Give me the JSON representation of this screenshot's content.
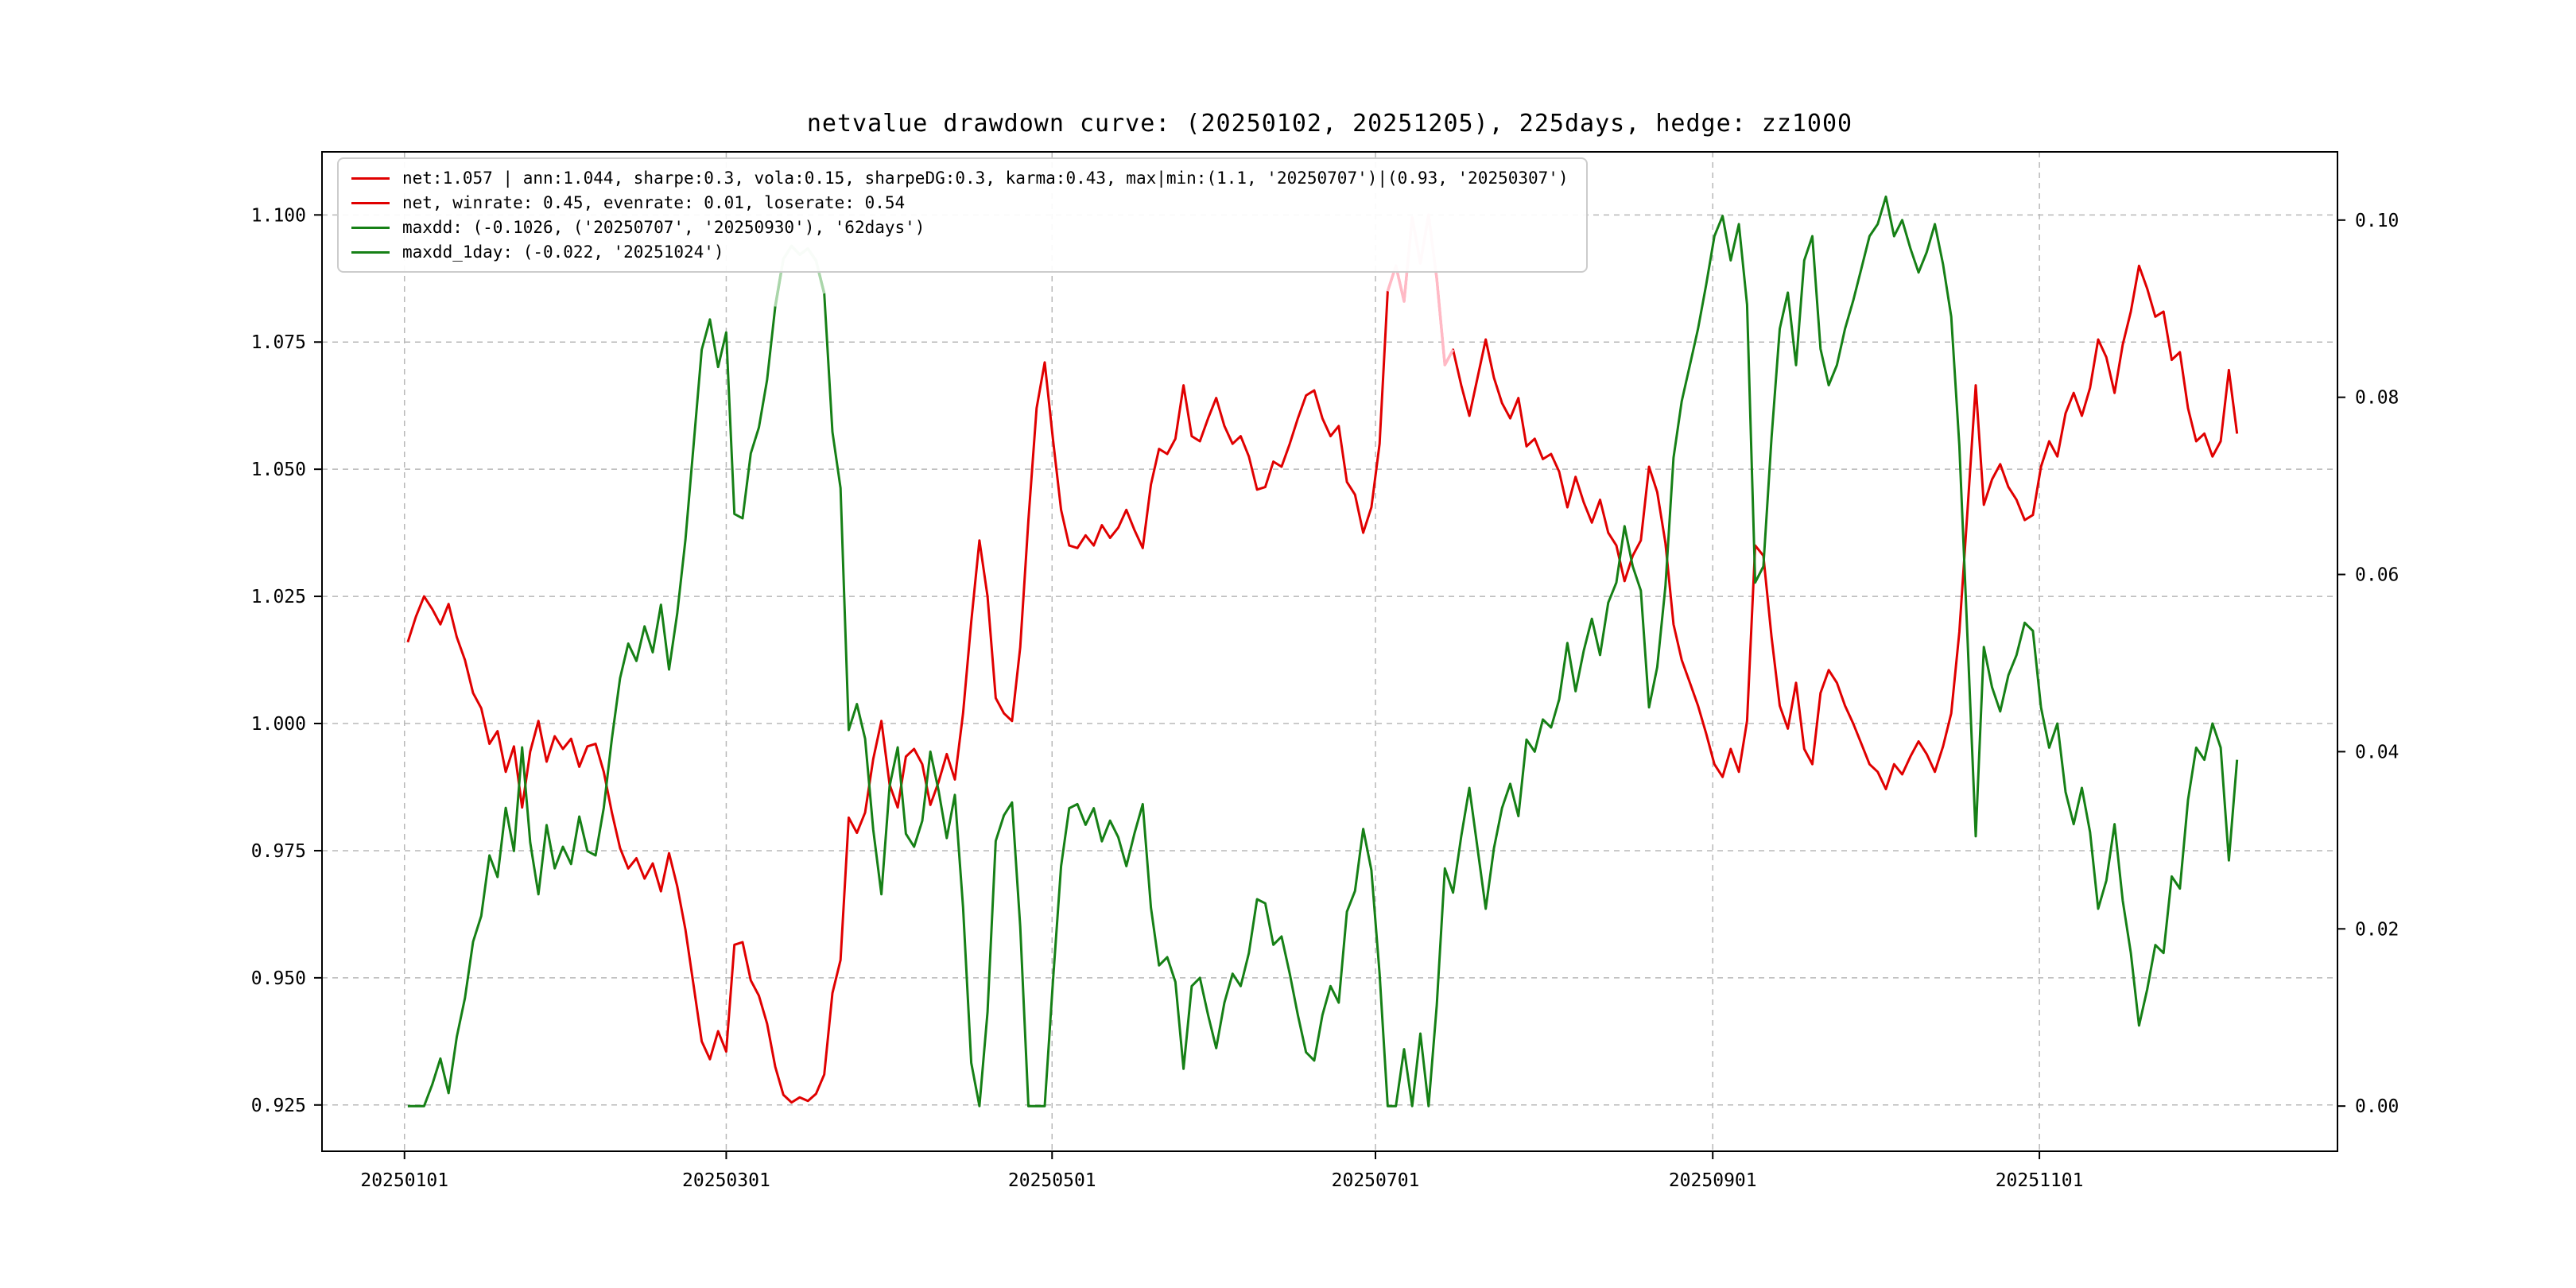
{
  "title": "netvalue drawdown curve: (20250102, 20251205), 225days, hedge: zz1000",
  "colors": {
    "net": "#e00000",
    "drawdown": "#168016",
    "net_peak_highlight": "#ffb9c5",
    "drawdown_peak_highlight": "#aad6aa",
    "grid": "#b8b8b8",
    "frame": "#000000"
  },
  "legend": {
    "items": [
      {
        "color_key": "net",
        "label": "net:1.057 | ann:1.044, sharpe:0.3, vola:0.15, sharpeDG:0.3, karma:0.43, max|min:(1.1, '20250707')|(0.93, '20250307')"
      },
      {
        "color_key": "net",
        "label": "net, winrate: 0.45, evenrate: 0.01, loserate: 0.54"
      },
      {
        "color_key": "drawdown",
        "label": "maxdd: (-0.1026, ('20250707', '20250930'), '62days')"
      },
      {
        "color_key": "drawdown",
        "label": "maxdd_1day: (-0.022, '20251024')"
      }
    ]
  },
  "chart_data": {
    "type": "line",
    "start_date": "20250102",
    "end_date": "20251205",
    "n_points": 225,
    "grid": true,
    "legend_position": "upper left",
    "x_axis": {
      "xlim": [
        -10.5,
        236.3
      ],
      "ticks": [
        {
          "label": "20250101",
          "pos": -0.4
        },
        {
          "label": "20250301",
          "pos": 39.0
        },
        {
          "label": "20250501",
          "pos": 78.9
        },
        {
          "label": "20250701",
          "pos": 118.5
        },
        {
          "label": "20250901",
          "pos": 159.8
        },
        {
          "label": "20251101",
          "pos": 199.8
        }
      ]
    },
    "y_axis_left": {
      "ylim": [
        0.9159,
        1.1124
      ],
      "ticks": [
        {
          "label": "0.925",
          "value": 0.925
        },
        {
          "label": "0.950",
          "value": 0.95
        },
        {
          "label": "0.975",
          "value": 0.975
        },
        {
          "label": "1.000",
          "value": 1.0
        },
        {
          "label": "1.025",
          "value": 1.025
        },
        {
          "label": "1.050",
          "value": 1.05
        },
        {
          "label": "1.075",
          "value": 1.075
        },
        {
          "label": "1.100",
          "value": 1.1
        }
      ]
    },
    "y_axis_right": {
      "ylim": [
        -0.0051,
        0.1077
      ],
      "ticks": [
        {
          "label": "0.00",
          "value": 0.0
        },
        {
          "label": "0.02",
          "value": 0.02
        },
        {
          "label": "0.04",
          "value": 0.04
        },
        {
          "label": "0.06",
          "value": 0.06
        },
        {
          "label": "0.08",
          "value": 0.08
        },
        {
          "label": "0.10",
          "value": 0.1
        }
      ]
    },
    "series": [
      {
        "name": "net",
        "axis": "left",
        "color_key": "net",
        "values": [
          1.016,
          1.021,
          1.025,
          1.0225,
          1.0195,
          1.0235,
          1.017,
          1.0125,
          1.006,
          1.003,
          0.996,
          0.9985,
          0.9905,
          0.9955,
          0.9835,
          0.9945,
          1.0005,
          0.9925,
          0.9975,
          0.995,
          0.997,
          0.9915,
          0.9955,
          0.996,
          0.9905,
          0.9825,
          0.9755,
          0.9715,
          0.9735,
          0.9695,
          0.9725,
          0.967,
          0.9745,
          0.968,
          0.9595,
          0.9485,
          0.9375,
          0.934,
          0.9395,
          0.9355,
          0.9565,
          0.957,
          0.9495,
          0.9465,
          0.941,
          0.9325,
          0.927,
          0.9255,
          0.9265,
          0.9258,
          0.9272,
          0.931,
          0.947,
          0.9535,
          0.9815,
          0.9785,
          0.9825,
          0.993,
          1.0005,
          0.988,
          0.9835,
          0.9935,
          0.995,
          0.992,
          0.984,
          0.9885,
          0.994,
          0.989,
          1.002,
          1.02,
          1.036,
          1.025,
          1.005,
          1.002,
          1.0005,
          1.015,
          1.04,
          1.062,
          1.071,
          1.056,
          1.042,
          1.035,
          1.0345,
          1.037,
          1.035,
          1.039,
          1.0365,
          1.0385,
          1.042,
          1.038,
          1.0345,
          1.047,
          1.054,
          1.053,
          1.056,
          1.0665,
          1.0565,
          1.0555,
          1.06,
          1.064,
          1.0585,
          1.055,
          1.0565,
          1.0525,
          1.046,
          1.0465,
          1.0515,
          1.0505,
          1.055,
          1.06,
          1.0645,
          1.0655,
          1.06,
          1.0565,
          1.0585,
          1.0475,
          1.045,
          1.0375,
          1.0425,
          1.055,
          1.085,
          1.09,
          1.083,
          1.0995,
          1.0905,
          1.1,
          1.0875,
          1.0705,
          1.0735,
          1.0665,
          1.0605,
          1.068,
          1.0755,
          1.068,
          1.063,
          1.06,
          1.064,
          1.0545,
          1.056,
          1.052,
          1.053,
          1.0495,
          1.0425,
          1.0485,
          1.0435,
          1.0395,
          1.044,
          1.0375,
          1.035,
          1.028,
          1.033,
          1.036,
          1.0505,
          1.0455,
          1.0355,
          1.0195,
          1.0125,
          1.008,
          1.0035,
          0.998,
          0.992,
          0.9895,
          0.995,
          0.9905,
          1.0005,
          1.035,
          1.033,
          1.017,
          1.0035,
          0.999,
          1.008,
          0.995,
          0.992,
          1.006,
          1.0105,
          1.008,
          1.0035,
          1.0,
          0.996,
          0.992,
          0.9905,
          0.9871,
          0.992,
          0.99,
          0.9935,
          0.9965,
          0.994,
          0.9905,
          0.9955,
          1.002,
          1.018,
          1.042,
          1.0665,
          1.043,
          1.048,
          1.051,
          1.0465,
          1.044,
          1.04,
          1.041,
          1.0505,
          1.0555,
          1.0525,
          1.061,
          1.065,
          1.0605,
          1.066,
          1.0755,
          1.072,
          1.065,
          1.0745,
          1.081,
          1.09,
          1.0855,
          1.08,
          1.081,
          1.0715,
          1.073,
          1.062,
          1.0555,
          1.057,
          1.0525,
          1.0555,
          1.0695,
          1.057
        ]
      },
      {
        "name": "maxdd",
        "axis": "right",
        "color_key": "drawdown",
        "derived_from": "net",
        "formula": "1 - net / cummax(net)",
        "max_drawdown": 0.1026,
        "max_drawdown_period": [
          "20250707",
          "20250930"
        ],
        "max_drawdown_1day": {
          "value": -0.022,
          "date": "20251024"
        }
      }
    ],
    "net_peak_highlight": {
      "from": 120,
      "to": 128
    },
    "drawdown_peak_highlight": {
      "from": 45,
      "to": 51
    }
  }
}
